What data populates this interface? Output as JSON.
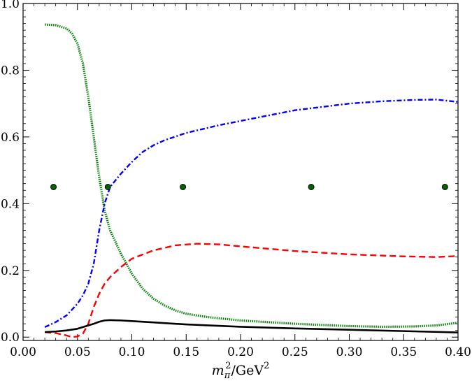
{
  "chart_data": {
    "type": "line",
    "title": "",
    "xlabel": "m_π²/GeV²",
    "xlabel_parts": {
      "m": "m",
      "sub": "π",
      "sup": "2",
      "rest": "/GeV",
      "rest_sup": "2"
    },
    "ylabel": "",
    "xlim": [
      0.0,
      0.4
    ],
    "ylim": [
      -0.01,
      1.0
    ],
    "grid": false,
    "legend": "none",
    "x_ticks": [
      0.0,
      0.05,
      0.1,
      0.15,
      0.2,
      0.25,
      0.3,
      0.35,
      0.4
    ],
    "x_tick_labels": [
      "0.00",
      "0.05",
      "0.10",
      "0.15",
      "0.20",
      "0.25",
      "0.30",
      "0.35",
      "0.40"
    ],
    "y_ticks": [
      0.0,
      0.2,
      0.4,
      0.6,
      0.8,
      1.0
    ],
    "y_tick_labels": [
      "0.0",
      "0.2",
      "0.4",
      "0.6",
      "0.8",
      "1.0"
    ],
    "series": [
      {
        "color": "#008000",
        "style": "dotted",
        "x": [
          0.02,
          0.03,
          0.04,
          0.045,
          0.05,
          0.055,
          0.06,
          0.065,
          0.07,
          0.075,
          0.08,
          0.09,
          0.1,
          0.11,
          0.12,
          0.13,
          0.14,
          0.15,
          0.17,
          0.2,
          0.25,
          0.3,
          0.33,
          0.36,
          0.38,
          0.4
        ],
        "y": [
          0.937,
          0.935,
          0.925,
          0.91,
          0.88,
          0.82,
          0.72,
          0.6,
          0.48,
          0.38,
          0.32,
          0.25,
          0.19,
          0.145,
          0.115,
          0.095,
          0.08,
          0.07,
          0.06,
          0.05,
          0.04,
          0.033,
          0.031,
          0.032,
          0.035,
          0.043
        ]
      },
      {
        "color": "#0000ff",
        "style": "dashdot",
        "x": [
          0.02,
          0.03,
          0.04,
          0.05,
          0.055,
          0.06,
          0.065,
          0.07,
          0.075,
          0.08,
          0.09,
          0.1,
          0.11,
          0.12,
          0.13,
          0.15,
          0.18,
          0.2,
          0.25,
          0.3,
          0.33,
          0.36,
          0.38,
          0.4
        ],
        "y": [
          0.03,
          0.045,
          0.065,
          0.1,
          0.125,
          0.16,
          0.22,
          0.32,
          0.4,
          0.45,
          0.49,
          0.525,
          0.555,
          0.575,
          0.59,
          0.612,
          0.635,
          0.648,
          0.68,
          0.7,
          0.707,
          0.711,
          0.712,
          0.705
        ]
      },
      {
        "color": "#ff0000",
        "style": "dashed",
        "x": [
          0.02,
          0.03,
          0.04,
          0.045,
          0.05,
          0.055,
          0.06,
          0.065,
          0.07,
          0.075,
          0.08,
          0.09,
          0.1,
          0.12,
          0.14,
          0.16,
          0.18,
          0.2,
          0.25,
          0.3,
          0.35,
          0.38,
          0.4
        ],
        "y": [
          0.015,
          0.012,
          0.005,
          0.0,
          0.002,
          0.01,
          0.04,
          0.09,
          0.13,
          0.16,
          0.18,
          0.21,
          0.235,
          0.26,
          0.275,
          0.28,
          0.278,
          0.272,
          0.258,
          0.248,
          0.242,
          0.24,
          0.243
        ]
      },
      {
        "color": "#000000",
        "style": "solid",
        "x": [
          0.02,
          0.03,
          0.04,
          0.05,
          0.055,
          0.06,
          0.065,
          0.07,
          0.075,
          0.08,
          0.09,
          0.1,
          0.12,
          0.15,
          0.2,
          0.25,
          0.3,
          0.35,
          0.4
        ],
        "y": [
          0.015,
          0.017,
          0.02,
          0.025,
          0.03,
          0.035,
          0.04,
          0.046,
          0.05,
          0.051,
          0.05,
          0.048,
          0.044,
          0.038,
          0.031,
          0.026,
          0.022,
          0.018,
          0.014
        ]
      }
    ],
    "markers": {
      "fill": "#006400",
      "edge": "#000000",
      "x": [
        0.028,
        0.078,
        0.147,
        0.265,
        0.388
      ],
      "y": [
        0.45,
        0.45,
        0.45,
        0.45,
        0.45
      ]
    }
  }
}
